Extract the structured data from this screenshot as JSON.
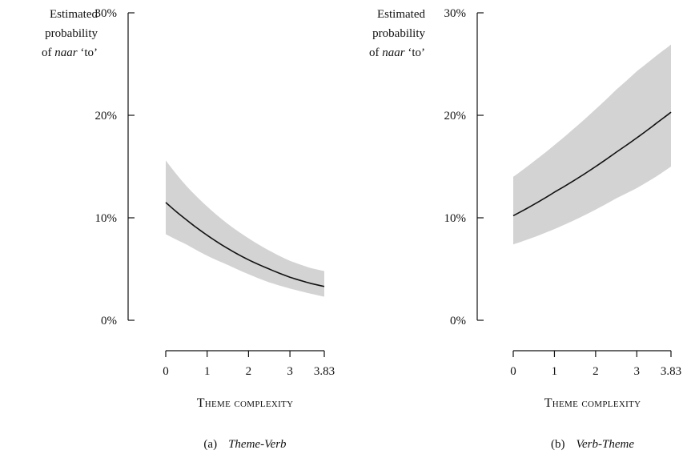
{
  "chart_data": [
    {
      "type": "line",
      "panel_label": "(a)",
      "title": "Theme-Verb",
      "xlabel": "Theme complexity",
      "ylabel": {
        "line1": "Estimated",
        "line2": "probability",
        "line3_prefix": "of ",
        "line3_italic": "naar",
        "line3_suffix": " ‘to’"
      },
      "xlim": [
        0,
        3.83
      ],
      "ylim": [
        0,
        30
      ],
      "xticks": [
        0,
        1,
        2,
        3,
        3.83
      ],
      "xtick_labels": [
        "0",
        "1",
        "2",
        "3",
        "3.83"
      ],
      "yticks": [
        0,
        10,
        20,
        30
      ],
      "ytick_labels": [
        "0%",
        "10%",
        "20%",
        "30%"
      ],
      "series": [
        {
          "x": [
            0,
            0.5,
            1,
            1.5,
            2,
            2.5,
            3,
            3.5,
            3.83
          ],
          "y": [
            11.5,
            9.8,
            8.3,
            7.0,
            5.9,
            5.0,
            4.2,
            3.6,
            3.3
          ],
          "lower": [
            8.4,
            7.4,
            6.3,
            5.4,
            4.5,
            3.7,
            3.1,
            2.6,
            2.3
          ],
          "upper": [
            15.6,
            13.1,
            11.1,
            9.4,
            8.0,
            6.8,
            5.8,
            5.1,
            4.8
          ]
        }
      ],
      "colors": {
        "line": "#111111",
        "band": "#d3d3d3"
      }
    },
    {
      "type": "line",
      "panel_label": "(b)",
      "title": "Verb-Theme",
      "xlabel": "Theme complexity",
      "ylabel": {
        "line1": "Estimated",
        "line2": "probability",
        "line3_prefix": "of ",
        "line3_italic": "naar",
        "line3_suffix": " ‘to’"
      },
      "xlim": [
        0,
        3.83
      ],
      "ylim": [
        0,
        30
      ],
      "xticks": [
        0,
        1,
        2,
        3,
        3.83
      ],
      "xtick_labels": [
        "0",
        "1",
        "2",
        "3",
        "3.83"
      ],
      "yticks": [
        0,
        10,
        20,
        30
      ],
      "ytick_labels": [
        "0%",
        "10%",
        "20%",
        "30%"
      ],
      "series": [
        {
          "x": [
            0,
            0.5,
            1,
            1.5,
            2,
            2.5,
            3,
            3.5,
            3.83
          ],
          "y": [
            10.2,
            11.3,
            12.5,
            13.7,
            15.0,
            16.4,
            17.8,
            19.3,
            20.3
          ],
          "lower": [
            7.4,
            8.1,
            8.9,
            9.8,
            10.8,
            11.9,
            12.9,
            14.1,
            15.0
          ],
          "upper": [
            14.0,
            15.5,
            17.1,
            18.8,
            20.6,
            22.5,
            24.3,
            25.9,
            26.9
          ]
        }
      ],
      "colors": {
        "line": "#111111",
        "band": "#d3d3d3"
      }
    }
  ]
}
